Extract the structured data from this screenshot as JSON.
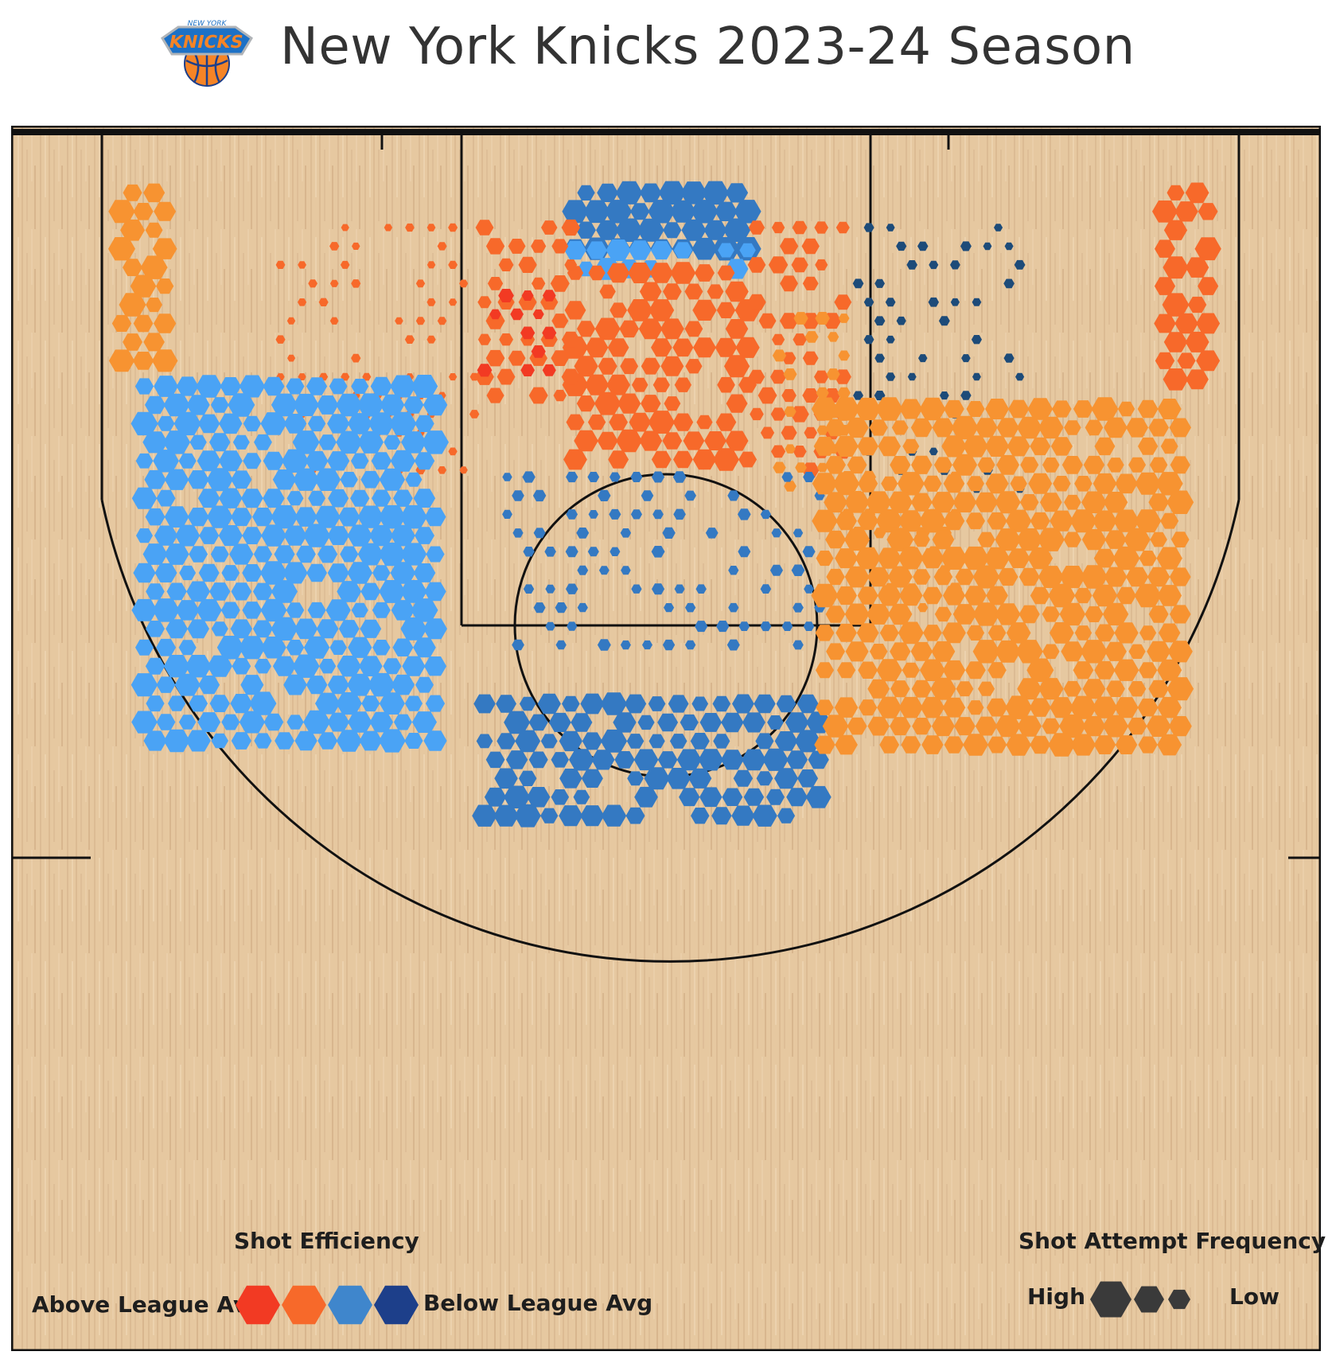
{
  "header": {
    "title": "New York Knicks 2023-24 Season",
    "logo_text": "NEW YORK KNICKS"
  },
  "colors": {
    "well_above": "#f23a23",
    "above": "#f7692a",
    "slightly_above": "#f79331",
    "slightly_below": "#4aa3f5",
    "below": "#3479c2",
    "well_below": "#1d4b79",
    "court": "#e6c8a0",
    "frequency": "#3a3a3a"
  },
  "legend": {
    "efficiency_title": "Shot Efficiency",
    "above_label": "Above League Avg",
    "below_label": "Below League Avg",
    "efficiency_colors": [
      "#f23a23",
      "#f7692a",
      "#3f86cc",
      "#1d3f8a"
    ],
    "frequency_title": "Shot Attempt Frequency",
    "high_label": "High",
    "low_label": "Low"
  },
  "chart_data": {
    "type": "hexbin",
    "x_unit": "feet from basket (left negative)",
    "y_unit": "feet from baseline",
    "xlim": [
      -25,
      25
    ],
    "ylim": [
      0,
      47
    ],
    "efficiency_scale": [
      "well_above",
      "above",
      "slightly_above",
      "slightly_below",
      "below",
      "well_below"
    ],
    "frequency_scale": [
      "low",
      "high"
    ],
    "zones": [
      {
        "name": "restricted area",
        "x": [
          -4,
          4
        ],
        "y": [
          0,
          5
        ],
        "efficiency": "below",
        "frequency": 1.0
      },
      {
        "name": "restricted area edge",
        "x": [
          -4,
          4
        ],
        "y": [
          5,
          6
        ],
        "efficiency": "slightly_below",
        "frequency": 0.8
      },
      {
        "name": "paint center",
        "x": [
          -4,
          4
        ],
        "y": [
          6,
          15
        ],
        "efficiency": "above",
        "frequency": 0.85
      },
      {
        "name": "paint left block",
        "x": [
          -8,
          -4
        ],
        "y": [
          4,
          12
        ],
        "efficiency": "above",
        "frequency": 0.55
      },
      {
        "name": "low post left",
        "x": [
          -8,
          -5
        ],
        "y": [
          7,
          11
        ],
        "efficiency": "well_above",
        "frequency": 0.4
      },
      {
        "name": "paint right block",
        "x": [
          4,
          8
        ],
        "y": [
          4,
          15
        ],
        "efficiency": "above",
        "frequency": 0.55
      },
      {
        "name": "right lane edge",
        "x": [
          5,
          8
        ],
        "y": [
          8,
          16
        ],
        "efficiency": "slightly_above",
        "frequency": 0.35
      },
      {
        "name": "left midrange",
        "x": [
          -17,
          -8
        ],
        "y": [
          4,
          15
        ],
        "efficiency": "above",
        "frequency": 0.15
      },
      {
        "name": "right midrange",
        "x": [
          8,
          16
        ],
        "y": [
          4,
          16
        ],
        "efficiency": "well_below",
        "frequency": 0.2
      },
      {
        "name": "right elbow midrange",
        "x": [
          8,
          13
        ],
        "y": [
          15,
          21
        ],
        "efficiency": "slightly_above",
        "frequency": 0.35
      },
      {
        "name": "free throw area",
        "x": [
          -7,
          7
        ],
        "y": [
          15,
          23
        ],
        "efficiency": "below",
        "frequency": 0.3
      },
      {
        "name": "left corner three",
        "x": [
          -24,
          -22
        ],
        "y": [
          0,
          10
        ],
        "efficiency": "slightly_above",
        "frequency": 0.9
      },
      {
        "name": "right corner three",
        "x": [
          22,
          24
        ],
        "y": [
          0,
          11
        ],
        "efficiency": "above",
        "frequency": 0.9
      },
      {
        "name": "left wing three",
        "x": [
          -23,
          -10
        ],
        "y": [
          11,
          27
        ],
        "efficiency": "slightly_below",
        "frequency": 0.9
      },
      {
        "name": "top of key three",
        "x": [
          -8,
          7
        ],
        "y": [
          25,
          30
        ],
        "efficiency": "below",
        "frequency": 0.85
      },
      {
        "name": "right wing three",
        "x": [
          7,
          23
        ],
        "y": [
          12,
          27
        ],
        "efficiency": "slightly_above",
        "frequency": 0.9
      }
    ]
  }
}
